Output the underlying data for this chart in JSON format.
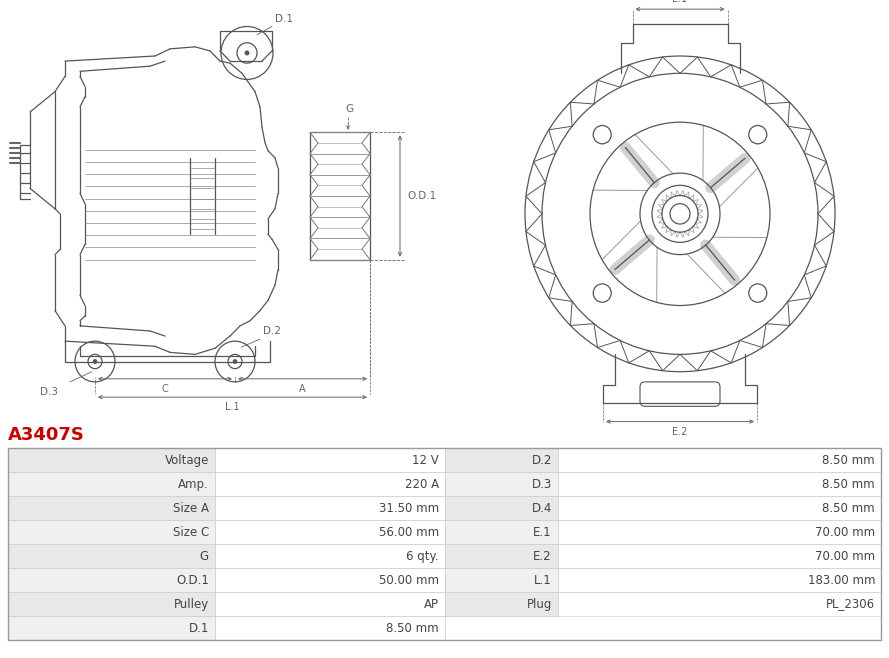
{
  "title": "A3407S",
  "title_color": "#cc0000",
  "bg_color": "#ffffff",
  "table_rows": [
    [
      "Voltage",
      "12 V",
      "D.2",
      "8.50 mm"
    ],
    [
      "Amp.",
      "220 A",
      "D.3",
      "8.50 mm"
    ],
    [
      "Size A",
      "31.50 mm",
      "D.4",
      "8.50 mm"
    ],
    [
      "Size C",
      "56.00 mm",
      "E.1",
      "70.00 mm"
    ],
    [
      "G",
      "6 qty.",
      "E.2",
      "70.00 mm"
    ],
    [
      "O.D.1",
      "50.00 mm",
      "L.1",
      "183.00 mm"
    ],
    [
      "Pulley",
      "AP",
      "Plug",
      "PL_2306"
    ],
    [
      "D.1",
      "8.50 mm",
      "",
      ""
    ]
  ],
  "line_color": "#555555",
  "dim_color": "#666666",
  "header_bg1": "#e8e8e8",
  "header_bg2": "#f0f0f0",
  "row_bg": "#fafafa",
  "border_color": "#cccccc",
  "text_color": "#444444"
}
